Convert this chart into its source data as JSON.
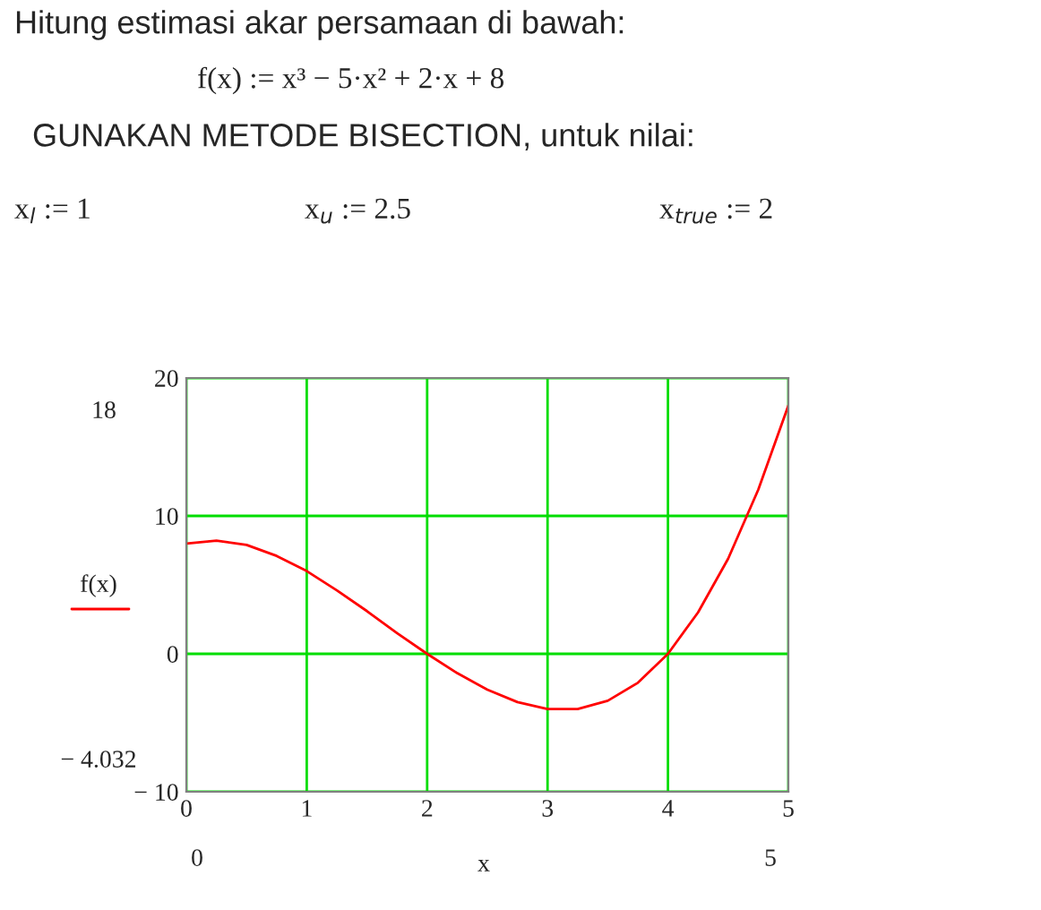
{
  "chart_data": {
    "type": "line",
    "title": "Hitung estimasi akar persamaan di bawah:",
    "subtitle": "GUNAKAN METODE BISECTION, untuk nilai:",
    "xlabel": "x",
    "ylabel": "f(x)",
    "x": [
      0,
      0.25,
      0.5,
      0.75,
      1,
      1.25,
      1.5,
      1.75,
      2,
      2.25,
      2.5,
      2.75,
      3,
      3.25,
      3.5,
      3.75,
      4,
      4.25,
      4.5,
      4.75,
      5
    ],
    "series": [
      {
        "color": "#ff0000",
        "values": [
          8,
          8.2,
          7.9,
          7.1,
          6,
          4.6,
          3.1,
          1.5,
          0,
          -1.4,
          -2.6,
          -3.5,
          -4,
          -4,
          -3.4,
          -2.1,
          0,
          3,
          6.9,
          11.9,
          18
        ]
      }
    ],
    "xlim": [
      0,
      5
    ],
    "xticks": [
      0,
      1,
      2,
      3,
      4,
      5
    ],
    "ylim": [
      -10,
      20
    ],
    "yticks": [
      20,
      10,
      0,
      {
        "value": -10,
        "label": "− 10"
      }
    ],
    "grid": true,
    "line_style": "solid",
    "marker": "none",
    "annotations": [
      "f(x) := x³ − 5·x² + 2·x + 8",
      "x$_{l}$ := 1",
      "x$_{u}$ := 2.5",
      "x$_{true}$ := 2",
      "18",
      "− 4.032",
      "0",
      "5"
    ]
  }
}
